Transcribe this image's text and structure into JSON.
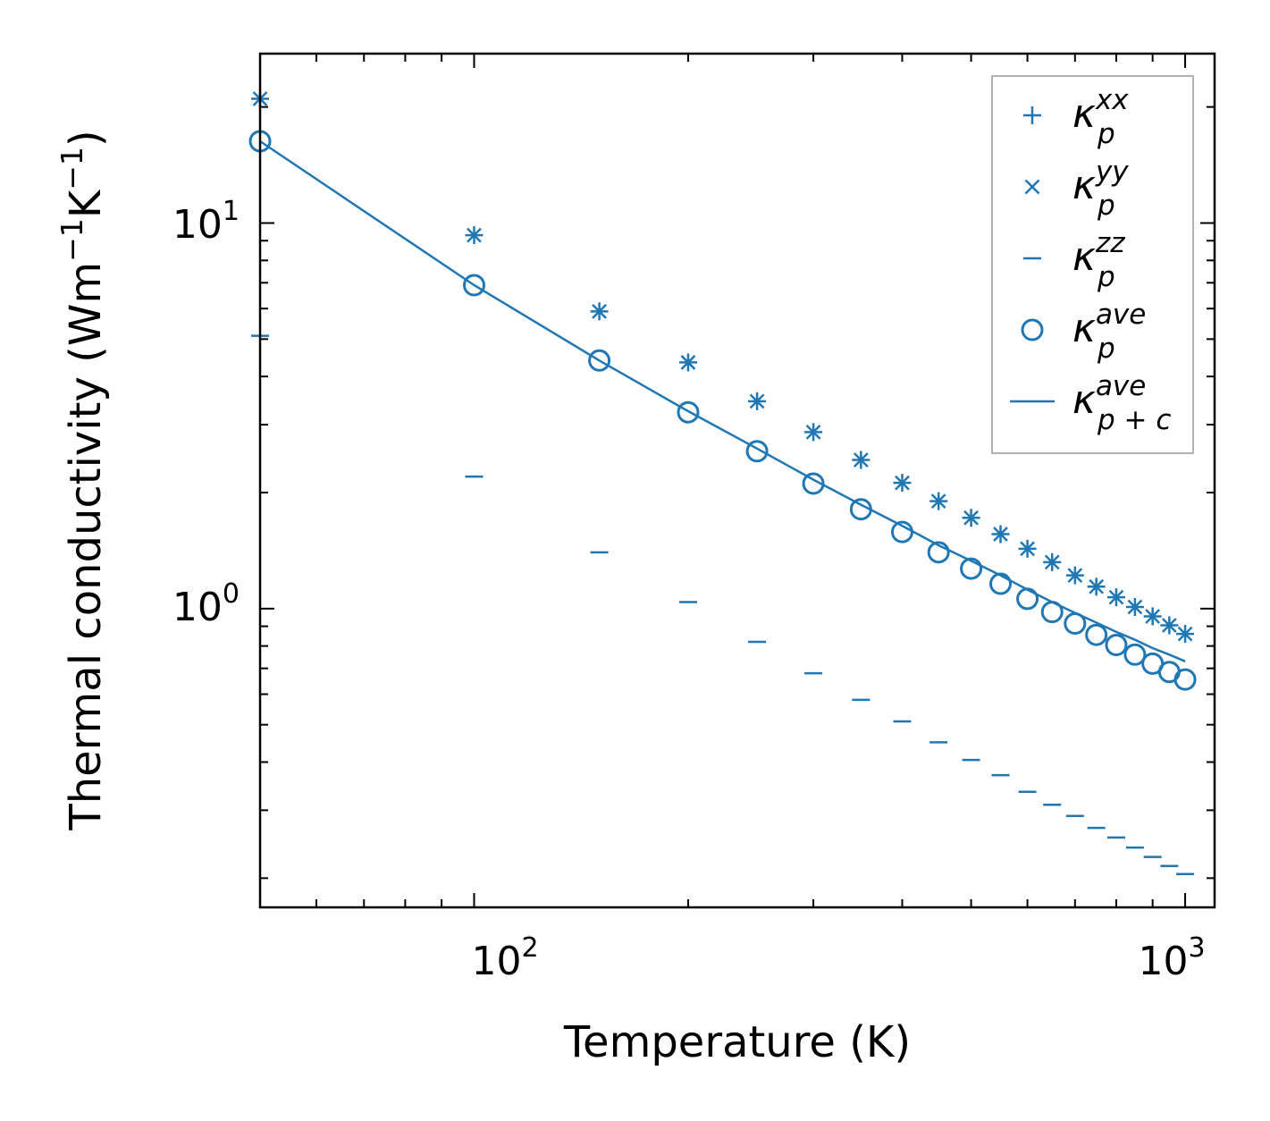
{
  "chart_data": {
    "type": "scatter",
    "xscale": "log",
    "yscale": "log",
    "xlim": [
      50,
      1100
    ],
    "ylim": [
      0.168,
      27.5
    ],
    "xlabel": "Temperature (K)",
    "ylabel": {
      "main": "Thermal conductivity (Wm",
      "sup1": "−1",
      "mid": "K",
      "sup2": "−1",
      "end": ")"
    },
    "x_ticks": [
      {
        "base": "10",
        "exp": "2",
        "value": 100
      },
      {
        "base": "10",
        "exp": "3",
        "value": 1000
      }
    ],
    "y_ticks": [
      {
        "base": "10",
        "exp": "0",
        "value": 1
      },
      {
        "base": "10",
        "exp": "1",
        "value": 10
      }
    ],
    "legend_position": "top-right",
    "color": "#1f77b4",
    "x": [
      50,
      100,
      150,
      200,
      250,
      300,
      350,
      400,
      450,
      500,
      550,
      600,
      650,
      700,
      750,
      800,
      850,
      900,
      950,
      1000
    ],
    "series": [
      {
        "name": "kxx",
        "label": {
          "base": "κ",
          "sup": "xx",
          "sub": "p"
        },
        "marker": "plus",
        "values": [
          21.0,
          9.3,
          5.9,
          4.35,
          3.45,
          2.87,
          2.43,
          2.12,
          1.9,
          1.72,
          1.56,
          1.43,
          1.32,
          1.22,
          1.14,
          1.07,
          1.01,
          0.955,
          0.905,
          0.86
        ]
      },
      {
        "name": "kyy",
        "label": {
          "base": "κ",
          "sup": "yy",
          "sub": "p"
        },
        "marker": "x",
        "values": [
          21.0,
          9.3,
          5.9,
          4.35,
          3.45,
          2.87,
          2.43,
          2.12,
          1.9,
          1.72,
          1.56,
          1.43,
          1.32,
          1.22,
          1.14,
          1.07,
          1.01,
          0.955,
          0.905,
          0.86
        ]
      },
      {
        "name": "kzz",
        "label": {
          "base": "κ",
          "sup": "zz",
          "sub": "p"
        },
        "marker": "hline",
        "values": [
          5.1,
          2.2,
          1.4,
          1.04,
          0.82,
          0.68,
          0.58,
          0.51,
          0.45,
          0.405,
          0.37,
          0.335,
          0.31,
          0.29,
          0.27,
          0.255,
          0.24,
          0.227,
          0.215,
          0.205
        ]
      },
      {
        "name": "kave",
        "label": {
          "base": "κ",
          "sup": "ave",
          "sub": "p"
        },
        "marker": "circle",
        "values": [
          16.3,
          6.9,
          4.4,
          3.23,
          2.56,
          2.11,
          1.81,
          1.58,
          1.4,
          1.27,
          1.16,
          1.06,
          0.98,
          0.915,
          0.855,
          0.805,
          0.76,
          0.72,
          0.685,
          0.655
        ]
      },
      {
        "name": "kpc",
        "label": {
          "base": "κ",
          "sup": "ave",
          "sub": "p + c"
        },
        "marker": "line",
        "values": [
          16.3,
          6.9,
          4.4,
          3.25,
          2.6,
          2.16,
          1.86,
          1.64,
          1.46,
          1.33,
          1.22,
          1.12,
          1.04,
          0.975,
          0.92,
          0.87,
          0.83,
          0.79,
          0.76,
          0.73
        ]
      }
    ]
  }
}
